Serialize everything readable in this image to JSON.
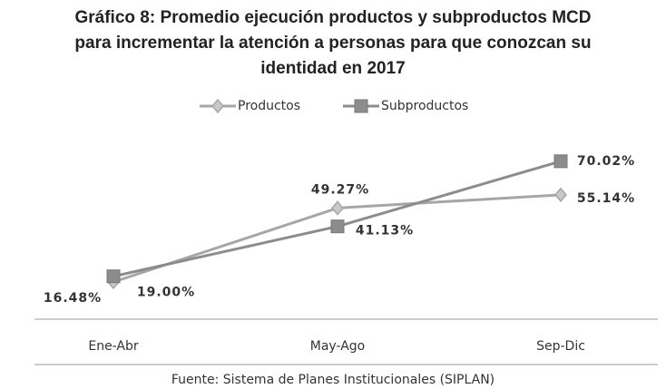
{
  "chart_data": {
    "type": "line",
    "title": "Gráfico 8: Promedio ejecución productos y subproductos MCD para incrementar la atención a personas para que conozcan su identidad en 2017",
    "categories": [
      "Ene-Abr",
      "May-Ago",
      "Sep-Dic"
    ],
    "series": [
      {
        "name": "Productos",
        "color": "#a6a6a6",
        "marker": "diamond",
        "values": [
          16.48,
          49.27,
          55.14
        ],
        "value_labels": [
          "16.48%",
          "49.27%",
          "55.14%"
        ]
      },
      {
        "name": "Subproductos",
        "color": "#8c8c8c",
        "marker": "square",
        "values": [
          19.0,
          41.13,
          70.02
        ],
        "value_labels": [
          "19.00%",
          "41.13%",
          "70.02%"
        ]
      }
    ],
    "ylim": [
      0,
      80
    ],
    "legend": "top",
    "source": "Fuente: Sistema de Planes Institucionales (SIPLAN)"
  }
}
